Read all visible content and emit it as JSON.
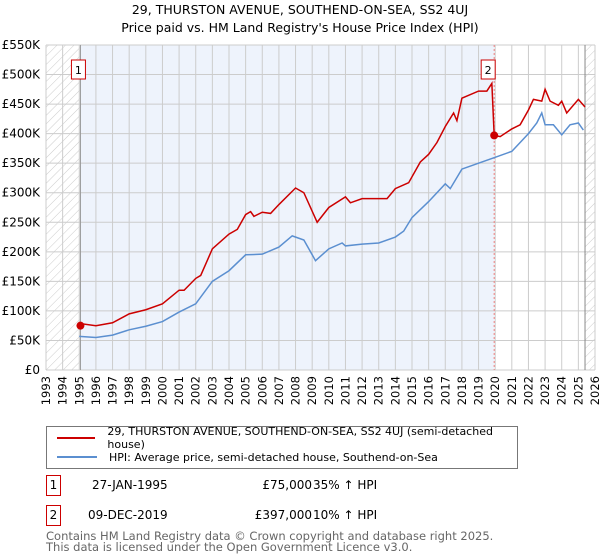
{
  "title": "29, THURSTON AVENUE, SOUTHEND-ON-SEA, SS2 4UJ",
  "subtitle": "Price paid vs. HM Land Registry's House Price Index (HPI)",
  "chart_data": {
    "type": "line",
    "title": "29, THURSTON AVENUE, SOUTHEND-ON-SEA, SS2 4UJ",
    "subtitle": "Price paid vs. HM Land Registry's House Price Index (HPI)",
    "xlim": [
      1993,
      2026
    ],
    "ylim": [
      0,
      550000
    ],
    "xticks": [
      "1993",
      "1994",
      "1995",
      "1996",
      "1997",
      "1998",
      "1999",
      "2000",
      "2001",
      "2002",
      "2003",
      "2004",
      "2005",
      "2006",
      "2007",
      "2008",
      "2009",
      "2010",
      "2011",
      "2012",
      "2013",
      "2014",
      "2015",
      "2016",
      "2017",
      "2018",
      "2019",
      "2020",
      "2021",
      "2022",
      "2023",
      "2024",
      "2025",
      "2026"
    ],
    "yticks": [
      {
        "v": 0,
        "label": "£0"
      },
      {
        "v": 50000,
        "label": "£50K"
      },
      {
        "v": 100000,
        "label": "£100K"
      },
      {
        "v": 150000,
        "label": "£150K"
      },
      {
        "v": 200000,
        "label": "£200K"
      },
      {
        "v": 250000,
        "label": "£250K"
      },
      {
        "v": 300000,
        "label": "£300K"
      },
      {
        "v": 350000,
        "label": "£350K"
      },
      {
        "v": 400000,
        "label": "£400K"
      },
      {
        "v": 450000,
        "label": "£450K"
      },
      {
        "v": 500000,
        "label": "£500K"
      },
      {
        "v": 550000,
        "label": "£550K"
      }
    ],
    "grid": true,
    "colors": {
      "property": "#cc0000",
      "hpi": "#5b8fd0",
      "shade": "#eef3fc"
    },
    "series": [
      {
        "name": "29, THURSTON AVENUE, SOUTHEND-ON-SEA, SS2 4UJ (semi-detached house)",
        "color": "#cc0000",
        "points": [
          [
            1995.07,
            75000
          ],
          [
            1995.2,
            78000
          ],
          [
            1996,
            75000
          ],
          [
            1997,
            80000
          ],
          [
            1998,
            95000
          ],
          [
            1999,
            102000
          ],
          [
            2000,
            112000
          ],
          [
            2001,
            135000
          ],
          [
            2001.3,
            135000
          ],
          [
            2002,
            155000
          ],
          [
            2002.3,
            160000
          ],
          [
            2003,
            205000
          ],
          [
            2004,
            230000
          ],
          [
            2004.5,
            238000
          ],
          [
            2005,
            263000
          ],
          [
            2005.3,
            268000
          ],
          [
            2005.5,
            260000
          ],
          [
            2006,
            267000
          ],
          [
            2006.5,
            265000
          ],
          [
            2007,
            280000
          ],
          [
            2008,
            308000
          ],
          [
            2008.5,
            300000
          ],
          [
            2009.3,
            250000
          ],
          [
            2010,
            275000
          ],
          [
            2011,
            293000
          ],
          [
            2011.3,
            283000
          ],
          [
            2012,
            290000
          ],
          [
            2013,
            290000
          ],
          [
            2013.5,
            290000
          ],
          [
            2014,
            307000
          ],
          [
            2014.8,
            317000
          ],
          [
            2015.5,
            352000
          ],
          [
            2016,
            365000
          ],
          [
            2016.5,
            385000
          ],
          [
            2017,
            412000
          ],
          [
            2017.5,
            435000
          ],
          [
            2017.7,
            422000
          ],
          [
            2018,
            460000
          ],
          [
            2019,
            472000
          ],
          [
            2019.5,
            472000
          ],
          [
            2019.8,
            485000
          ],
          [
            2019.94,
            397000
          ],
          [
            2020.3,
            395000
          ],
          [
            2021,
            408000
          ],
          [
            2021.5,
            415000
          ],
          [
            2022,
            440000
          ],
          [
            2022.3,
            458000
          ],
          [
            2022.8,
            455000
          ],
          [
            2023,
            475000
          ],
          [
            2023.3,
            455000
          ],
          [
            2023.8,
            448000
          ],
          [
            2024,
            455000
          ],
          [
            2024.3,
            435000
          ],
          [
            2025,
            458000
          ],
          [
            2025.4,
            445000
          ]
        ]
      },
      {
        "name": "HPI: Average price, semi-detached house, Southend-on-Sea",
        "color": "#5b8fd0",
        "points": [
          [
            1995,
            57000
          ],
          [
            1996,
            55000
          ],
          [
            1997,
            59000
          ],
          [
            1998,
            68000
          ],
          [
            1999,
            74000
          ],
          [
            2000,
            82000
          ],
          [
            2001,
            98000
          ],
          [
            2002,
            112000
          ],
          [
            2003,
            150000
          ],
          [
            2004,
            168000
          ],
          [
            2005,
            195000
          ],
          [
            2006,
            196000
          ],
          [
            2007,
            208000
          ],
          [
            2007.8,
            227000
          ],
          [
            2008.5,
            220000
          ],
          [
            2009.2,
            185000
          ],
          [
            2010,
            205000
          ],
          [
            2010.8,
            215000
          ],
          [
            2011,
            210000
          ],
          [
            2012,
            213000
          ],
          [
            2013,
            215000
          ],
          [
            2014,
            225000
          ],
          [
            2014.5,
            235000
          ],
          [
            2015,
            258000
          ],
          [
            2016,
            285000
          ],
          [
            2017,
            315000
          ],
          [
            2017.3,
            307000
          ],
          [
            2018,
            340000
          ],
          [
            2019,
            350000
          ],
          [
            2020,
            360000
          ],
          [
            2021,
            370000
          ],
          [
            2022,
            400000
          ],
          [
            2022.5,
            418000
          ],
          [
            2022.8,
            435000
          ],
          [
            2023,
            415000
          ],
          [
            2023.5,
            415000
          ],
          [
            2024,
            398000
          ],
          [
            2024.5,
            415000
          ],
          [
            2025,
            418000
          ],
          [
            2025.3,
            406000
          ]
        ]
      }
    ],
    "annotations": [
      {
        "label": "1",
        "x": 1995.07,
        "y": 75000
      },
      {
        "label": "2",
        "x": 2019.94,
        "y": 397000
      }
    ],
    "shaded_range": [
      1995.07,
      2019.94
    ],
    "hatched_ranges": [
      [
        1993,
        1995.07
      ],
      [
        2025.4,
        2026
      ]
    ]
  },
  "legend": {
    "property": "29, THURSTON AVENUE, SOUTHEND-ON-SEA, SS2 4UJ (semi-detached house)",
    "hpi": "HPI: Average price, semi-detached house, Southend-on-Sea"
  },
  "transactions": [
    {
      "num": "1",
      "date": "27-JAN-1995",
      "price": "£75,000",
      "hpi": "35% ↑ HPI"
    },
    {
      "num": "2",
      "date": "09-DEC-2019",
      "price": "£397,000",
      "hpi": "10% ↑ HPI"
    }
  ],
  "footer": {
    "line1": "Contains HM Land Registry data © Crown copyright and database right 2025.",
    "line2": "This data is licensed under the Open Government Licence v3.0."
  }
}
